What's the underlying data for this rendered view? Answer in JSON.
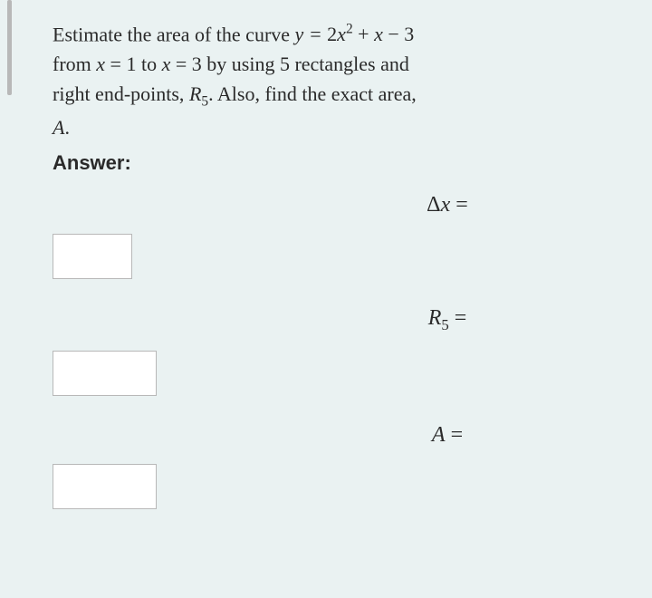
{
  "question": {
    "line1_prefix": "Estimate the area of the curve ",
    "equation_y": "y",
    "equation_eq": " = ",
    "equation_coef1": "2",
    "equation_var1": "x",
    "equation_sup": "2",
    "equation_plus": " + ",
    "equation_var2": "x",
    "equation_minus": " − 3",
    "line2_prefix": "from ",
    "from_var": "x",
    "from_eq": " = 1",
    "line2_to": " to ",
    "to_var": "x",
    "to_eq": " = 3",
    "line2_suffix": " by using 5 rectangles and",
    "line3_prefix": "right end-points, ",
    "r_var": "R",
    "r_sub": "5",
    "line3_suffix": ". Also, find the exact area,",
    "line4": "A",
    "line4_period": "."
  },
  "answer_label": "Answer:",
  "equations": {
    "delta_x": {
      "delta": "Δ",
      "var": "x",
      "eq": " ="
    },
    "r5": {
      "var": "R",
      "sub": "5",
      "eq": " ="
    },
    "a": {
      "var": "A",
      "eq": " ="
    }
  },
  "styling": {
    "background_color": "#eaf2f2",
    "text_color": "#2a2a2a",
    "input_bg": "#ffffff",
    "input_border": "#b8b8b8",
    "scrollbar_color": "#b8b8b8",
    "question_fontsize": 22,
    "equation_fontsize": 24,
    "input_small_width": 88,
    "input_medium_width": 115,
    "input_height": 50
  }
}
